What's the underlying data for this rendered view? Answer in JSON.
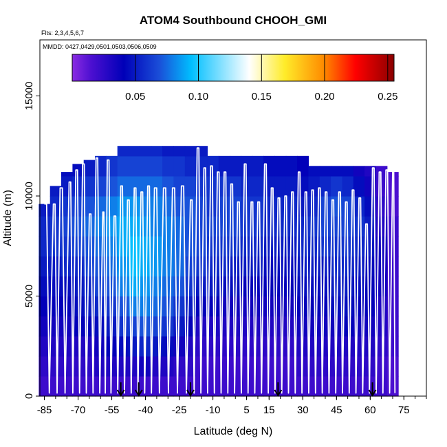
{
  "chart_data": {
    "type": "heatmap",
    "title": "ATOM4 Southbound CHOOH_GMI",
    "flights_note": "Flts: 2,3,4,5,6,7",
    "dates_note": "MMDD: 0427,0429,0501,0503,0506,0509",
    "xlabel": "Latitude (deg N)",
    "ylabel": "Altitude (m)",
    "xlim": [
      -87,
      85
    ],
    "ylim": [
      0,
      17800
    ],
    "x_ticks": [
      -85,
      -70,
      -55,
      -40,
      -25,
      -10,
      5,
      15,
      30,
      45,
      60,
      75
    ],
    "y_ticks": [
      0,
      5000,
      10000,
      15000
    ],
    "colorbar": {
      "min": 0.0,
      "max": 0.255,
      "ticks": [
        0.05,
        0.1,
        0.15,
        0.2,
        0.25
      ],
      "tick_labels": [
        "0.05",
        "0.10",
        "0.15",
        "0.20",
        "0.25"
      ],
      "colors": [
        "#8a2be2",
        "#4b0fd0",
        "#0000b8",
        "#1a4ed8",
        "#00bfff",
        "#ffffff",
        "#ffec2a",
        "#ff8c00",
        "#ff0000",
        "#8b0000"
      ],
      "stops": [
        0,
        0.06,
        0.16,
        0.27,
        0.37,
        0.55,
        0.66,
        0.78,
        0.88,
        1
      ]
    },
    "altitude_levels": [
      0,
      1000,
      2000,
      3000,
      4000,
      5000,
      6000,
      7000,
      8000,
      9000,
      10000,
      11000,
      12000
    ],
    "profiles": [
      {
        "lat": -85,
        "top": 9600,
        "values": [
          0.02,
          0.025,
          0.03,
          0.035,
          0.04,
          0.045,
          0.05,
          0.055,
          0.055,
          0.05
        ]
      },
      {
        "lat": -80,
        "top": 10500,
        "values": [
          0.02,
          0.025,
          0.03,
          0.035,
          0.04,
          0.045,
          0.05,
          0.06,
          0.06,
          0.055,
          0.05
        ]
      },
      {
        "lat": -75,
        "top": 11200,
        "values": [
          0.02,
          0.025,
          0.03,
          0.035,
          0.04,
          0.045,
          0.055,
          0.06,
          0.065,
          0.06,
          0.05,
          0.045
        ]
      },
      {
        "lat": -70,
        "top": 11600,
        "values": [
          0.02,
          0.025,
          0.03,
          0.04,
          0.045,
          0.05,
          0.055,
          0.065,
          0.07,
          0.065,
          0.055,
          0.045
        ]
      },
      {
        "lat": -65,
        "top": 11800,
        "values": [
          0.02,
          0.025,
          0.03,
          0.04,
          0.05,
          0.055,
          0.065,
          0.07,
          0.075,
          0.07,
          0.06,
          0.05
        ]
      },
      {
        "lat": -60,
        "top": 12000,
        "values": [
          0.02,
          0.03,
          0.035,
          0.045,
          0.055,
          0.065,
          0.07,
          0.075,
          0.08,
          0.075,
          0.065,
          0.055
        ]
      },
      {
        "lat": -55,
        "top": 12000,
        "values": [
          0.02,
          0.03,
          0.04,
          0.05,
          0.06,
          0.07,
          0.075,
          0.08,
          0.085,
          0.08,
          0.07,
          0.06
        ]
      },
      {
        "lat": -50,
        "top": 12500,
        "values": [
          0.02,
          0.03,
          0.045,
          0.06,
          0.07,
          0.08,
          0.085,
          0.09,
          0.09,
          0.085,
          0.075,
          0.065,
          0.055
        ]
      },
      {
        "lat": -45,
        "top": 12500,
        "values": [
          0.02,
          0.03,
          0.05,
          0.065,
          0.08,
          0.09,
          0.095,
          0.095,
          0.09,
          0.085,
          0.075,
          0.065,
          0.055
        ]
      },
      {
        "lat": -40,
        "top": 12500,
        "values": [
          0.02,
          0.035,
          0.055,
          0.07,
          0.08,
          0.085,
          0.09,
          0.09,
          0.085,
          0.08,
          0.075,
          0.065,
          0.055
        ]
      },
      {
        "lat": -35,
        "top": 12500,
        "values": [
          0.02,
          0.03,
          0.05,
          0.065,
          0.075,
          0.08,
          0.085,
          0.085,
          0.08,
          0.08,
          0.075,
          0.065,
          0.055
        ]
      },
      {
        "lat": -30,
        "top": 12500,
        "values": [
          0.02,
          0.03,
          0.045,
          0.06,
          0.07,
          0.075,
          0.08,
          0.08,
          0.08,
          0.075,
          0.07,
          0.06,
          0.05
        ]
      },
      {
        "lat": -25,
        "top": 12500,
        "values": [
          0.02,
          0.025,
          0.035,
          0.05,
          0.06,
          0.07,
          0.075,
          0.075,
          0.075,
          0.07,
          0.065,
          0.06,
          0.05
        ]
      },
      {
        "lat": -20,
        "top": 12500,
        "values": [
          0.02,
          0.025,
          0.03,
          0.04,
          0.05,
          0.06,
          0.065,
          0.07,
          0.07,
          0.07,
          0.065,
          0.055,
          0.05
        ]
      },
      {
        "lat": -15,
        "top": 12500,
        "values": [
          0.02,
          0.02,
          0.025,
          0.03,
          0.04,
          0.05,
          0.06,
          0.065,
          0.065,
          0.065,
          0.06,
          0.055,
          0.05
        ]
      },
      {
        "lat": -10,
        "top": 12000,
        "values": [
          0.02,
          0.02,
          0.025,
          0.03,
          0.04,
          0.05,
          0.055,
          0.06,
          0.065,
          0.06,
          0.06,
          0.055
        ]
      },
      {
        "lat": -5,
        "top": 12000,
        "values": [
          0.02,
          0.02,
          0.025,
          0.03,
          0.035,
          0.045,
          0.055,
          0.06,
          0.065,
          0.065,
          0.06,
          0.05
        ]
      },
      {
        "lat": 0,
        "top": 12000,
        "values": [
          0.02,
          0.02,
          0.025,
          0.03,
          0.035,
          0.045,
          0.05,
          0.06,
          0.065,
          0.065,
          0.06,
          0.05
        ]
      },
      {
        "lat": 5,
        "top": 12000,
        "values": [
          0.02,
          0.02,
          0.025,
          0.03,
          0.035,
          0.04,
          0.05,
          0.055,
          0.06,
          0.06,
          0.055,
          0.05
        ]
      },
      {
        "lat": 10,
        "top": 12000,
        "values": [
          0.02,
          0.02,
          0.025,
          0.03,
          0.035,
          0.04,
          0.05,
          0.055,
          0.06,
          0.06,
          0.055,
          0.05
        ]
      },
      {
        "lat": 15,
        "top": 12000,
        "values": [
          0.02,
          0.02,
          0.025,
          0.03,
          0.035,
          0.04,
          0.045,
          0.05,
          0.055,
          0.055,
          0.05,
          0.045
        ]
      },
      {
        "lat": 20,
        "top": 12000,
        "values": [
          0.02,
          0.02,
          0.025,
          0.03,
          0.035,
          0.04,
          0.045,
          0.05,
          0.055,
          0.055,
          0.05,
          0.045
        ]
      },
      {
        "lat": 25,
        "top": 12000,
        "values": [
          0.02,
          0.02,
          0.025,
          0.03,
          0.035,
          0.04,
          0.045,
          0.05,
          0.055,
          0.055,
          0.05,
          0.045
        ]
      },
      {
        "lat": 30,
        "top": 12000,
        "values": [
          0.02,
          0.025,
          0.03,
          0.035,
          0.04,
          0.045,
          0.05,
          0.055,
          0.055,
          0.05,
          0.045,
          0.04
        ]
      },
      {
        "lat": 35,
        "top": 11500,
        "values": [
          0.02,
          0.025,
          0.03,
          0.035,
          0.04,
          0.045,
          0.05,
          0.055,
          0.06,
          0.055,
          0.05,
          0.045
        ]
      },
      {
        "lat": 40,
        "top": 11500,
        "values": [
          0.02,
          0.025,
          0.03,
          0.035,
          0.04,
          0.045,
          0.05,
          0.06,
          0.065,
          0.065,
          0.055,
          0.045
        ]
      },
      {
        "lat": 45,
        "top": 11500,
        "values": [
          0.02,
          0.025,
          0.03,
          0.035,
          0.045,
          0.05,
          0.055,
          0.06,
          0.065,
          0.07,
          0.06,
          0.045
        ]
      },
      {
        "lat": 50,
        "top": 11500,
        "values": [
          0.02,
          0.025,
          0.03,
          0.04,
          0.045,
          0.05,
          0.055,
          0.06,
          0.065,
          0.065,
          0.055,
          0.045
        ]
      },
      {
        "lat": 55,
        "top": 11500,
        "values": [
          0.02,
          0.025,
          0.03,
          0.035,
          0.04,
          0.045,
          0.05,
          0.055,
          0.06,
          0.055,
          0.045,
          0.035
        ]
      },
      {
        "lat": 60,
        "top": 11500,
        "values": [
          0.02,
          0.025,
          0.03,
          0.035,
          0.04,
          0.04,
          0.045,
          0.05,
          0.05,
          0.045,
          0.035,
          0.03
        ]
      },
      {
        "lat": 65,
        "top": 11500,
        "values": [
          0.02,
          0.02,
          0.025,
          0.03,
          0.03,
          0.035,
          0.035,
          0.035,
          0.03,
          0.025,
          0.02,
          0.02
        ]
      },
      {
        "lat": 70,
        "top": 11200,
        "values": [
          0.015,
          0.015,
          0.02,
          0.02,
          0.02,
          0.02,
          0.02,
          0.02,
          0.02,
          0.015,
          0.015,
          0.015
        ]
      }
    ],
    "flight_track_lats": [
      -85,
      -81,
      -78,
      -74,
      -71,
      -68,
      -65,
      -62,
      -59,
      -57,
      -54,
      -51,
      -48,
      -45,
      -42,
      -39,
      -36,
      -32,
      -28,
      -24,
      -20,
      -17,
      -14,
      -11,
      -8,
      -5,
      -2,
      1,
      4,
      7,
      10,
      13,
      16,
      19,
      22,
      25,
      28,
      31,
      34,
      37,
      40,
      43,
      46,
      49,
      52,
      55,
      58,
      61,
      64,
      67,
      70
    ],
    "flight_track_tops": [
      9600,
      9600,
      10400,
      10700,
      11300,
      11600,
      9100,
      11900,
      9200,
      11800,
      9000,
      10500,
      9800,
      10400,
      10200,
      10500,
      10400,
      10400,
      10400,
      10500,
      9800,
      12400,
      11400,
      11500,
      11200,
      11200,
      10600,
      9700,
      11600,
      9700,
      9700,
      11600,
      10400,
      9900,
      10000,
      10200,
      11200,
      10200,
      10300,
      10400,
      10200,
      9800,
      10200,
      9700,
      10300,
      9900,
      8600,
      11400,
      11200,
      11300,
      11400
    ],
    "arrow_lats": [
      -51,
      -43,
      -20,
      19,
      61
    ]
  }
}
